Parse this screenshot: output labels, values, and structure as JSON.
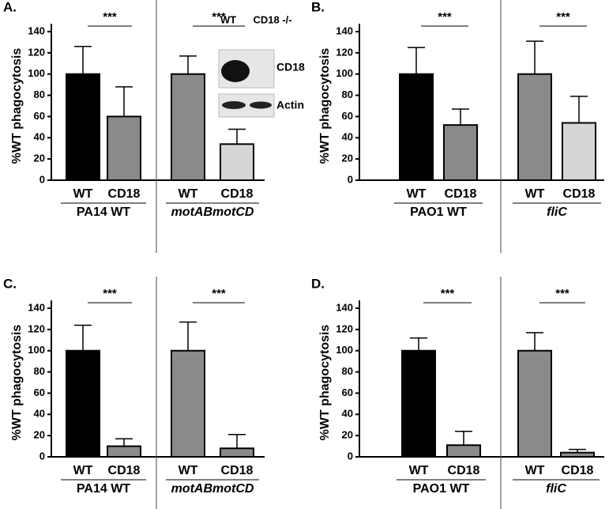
{
  "chart_data": [
    {
      "type": "bar",
      "panel": "A.",
      "ylabel": "%WT phagocytosis",
      "ylim": [
        0,
        140
      ],
      "yticks": [
        0,
        20,
        40,
        60,
        80,
        100,
        120,
        140
      ],
      "categories": [
        "WT",
        "CD18",
        "WT",
        "CD18"
      ],
      "groups": [
        "PA14 WT",
        "motABmotCD"
      ],
      "group_italic": [
        false,
        true
      ],
      "values": [
        100,
        60,
        100,
        34
      ],
      "errors": [
        26,
        28,
        17,
        14
      ],
      "colors": [
        "#000000",
        "#8a8a8a",
        "#8a8a8a",
        "#d6d6d6"
      ],
      "significance": [
        "***",
        "***"
      ],
      "inset": {
        "lanes": [
          "WT",
          "CD18 -/-"
        ],
        "rows": [
          "CD18",
          "Actin"
        ]
      }
    },
    {
      "type": "bar",
      "panel": "B.",
      "ylabel": "%WT phagocytosis",
      "ylim": [
        0,
        140
      ],
      "yticks": [
        0,
        20,
        40,
        60,
        80,
        100,
        120,
        140
      ],
      "categories": [
        "WT",
        "CD18",
        "WT",
        "CD18"
      ],
      "groups": [
        "PAO1 WT",
        "fliC"
      ],
      "group_italic": [
        false,
        true
      ],
      "values": [
        100,
        52,
        100,
        54
      ],
      "errors": [
        25,
        15,
        31,
        25
      ],
      "colors": [
        "#000000",
        "#8a8a8a",
        "#8a8a8a",
        "#d6d6d6"
      ],
      "significance": [
        "***",
        "***"
      ]
    },
    {
      "type": "bar",
      "panel": "C.",
      "ylabel": "%WT phagocytosis",
      "ylim": [
        0,
        140
      ],
      "yticks": [
        0,
        20,
        40,
        60,
        80,
        100,
        120,
        140
      ],
      "categories": [
        "WT",
        "CD18",
        "WT",
        "CD18"
      ],
      "groups": [
        "PA14 WT",
        "motABmotCD"
      ],
      "group_italic": [
        false,
        true
      ],
      "values": [
        100,
        10,
        100,
        8
      ],
      "errors": [
        24,
        7,
        27,
        13
      ],
      "colors": [
        "#000000",
        "#8a8a8a",
        "#8a8a8a",
        "#8a8a8a"
      ],
      "significance": [
        "***",
        "***"
      ]
    },
    {
      "type": "bar",
      "panel": "D.",
      "ylabel": "%WT phagocytosis",
      "ylim": [
        0,
        140
      ],
      "yticks": [
        0,
        20,
        40,
        60,
        80,
        100,
        120,
        140
      ],
      "categories": [
        "WT",
        "CD18",
        "WT",
        "CD18"
      ],
      "groups": [
        "PAO1 WT",
        "fliC"
      ],
      "group_italic": [
        false,
        true
      ],
      "values": [
        100,
        11,
        100,
        4
      ],
      "errors": [
        12,
        13,
        17,
        3
      ],
      "colors": [
        "#000000",
        "#8a8a8a",
        "#8a8a8a",
        "#8a8a8a"
      ],
      "significance": [
        "***",
        "***"
      ]
    }
  ]
}
